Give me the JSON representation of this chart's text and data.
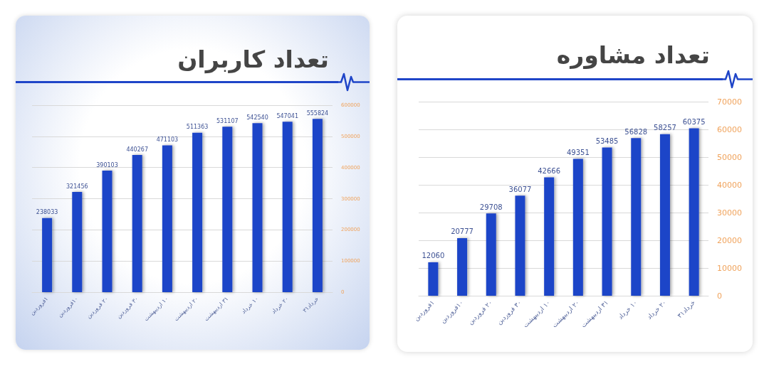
{
  "chart_data": [
    {
      "type": "bar",
      "title": "تعداد کاربران",
      "categories": [
        "۱فروردین",
        "۱۰فروردین",
        "۲۰ فروردین",
        "۳۰ فروردین",
        "۱۰ اردیبهشت",
        "۲۰ اردیبهشت",
        "۳۱ اردیبهشت",
        "۱۰ خرداد",
        "۲۰ خرداد",
        "خرداد۳۱"
      ],
      "values": [
        238033,
        321456,
        390103,
        440267,
        471103,
        511363,
        531107,
        542540,
        547041,
        555824
      ],
      "color": "#1f45c8",
      "ylim": [
        0,
        600000
      ],
      "yticks": [
        0,
        100000,
        200000,
        300000,
        400000,
        500000,
        600000
      ],
      "grid": "y",
      "data_labels": true
    },
    {
      "type": "bar",
      "title": "تعداد مشاوره",
      "categories": [
        "۱فروردین",
        "۱۰فروردین",
        "۲۰ فروردین",
        "۳۰ فروردین",
        "۱۰ اردیبهشت",
        "۲۰ اردیبهشت",
        "۳۱ اردیبهشت",
        "۱۰ خرداد",
        "۲۰ خرداد",
        "خرداد۳۱"
      ],
      "values": [
        12060,
        20777,
        29708,
        36077,
        42666,
        49351,
        53485,
        56828,
        58257,
        60375
      ],
      "color": "#1f45c8",
      "ylim": [
        0,
        70000
      ],
      "yticks": [
        0,
        10000,
        20000,
        30000,
        40000,
        50000,
        60000,
        70000
      ],
      "grid": "y",
      "data_labels": true
    }
  ]
}
